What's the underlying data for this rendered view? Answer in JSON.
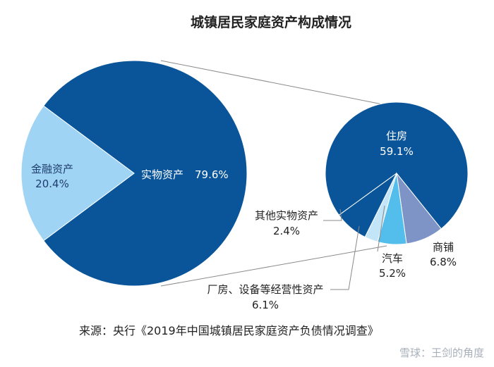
{
  "chart_data": {
    "type": "pie",
    "title": "城镇居民家庭资产构成情况",
    "main_pie": {
      "slices": [
        {
          "label": "实物资产",
          "value": 79.6,
          "value_text": "79.6%",
          "color": "#0a5599"
        },
        {
          "label": "金融资产",
          "value": 20.4,
          "value_text": "20.4%",
          "color": "#9fd4f4"
        }
      ]
    },
    "breakdown_pie": {
      "of": "实物资产",
      "slices": [
        {
          "label": "住房",
          "value": 59.1,
          "value_text": "59.1%",
          "color": "#0a5599"
        },
        {
          "label": "商铺",
          "value": 6.8,
          "value_text": "6.8%",
          "color": "#7f94c6"
        },
        {
          "label": "汽车",
          "value": 5.2,
          "value_text": "5.2%",
          "color": "#53bdec"
        },
        {
          "label": "厂房、设备等经营性资产",
          "value": 6.1,
          "value_text": "6.1%",
          "color": "#0a5599"
        },
        {
          "label": "其他实物资产",
          "value": 2.4,
          "value_text": "2.4%",
          "color": "#c2e5f8"
        }
      ]
    },
    "source": "来源：央行《2019年中国城镇居民家庭资产负债情况调查》",
    "watermark": "雪球：王剑的角度"
  }
}
